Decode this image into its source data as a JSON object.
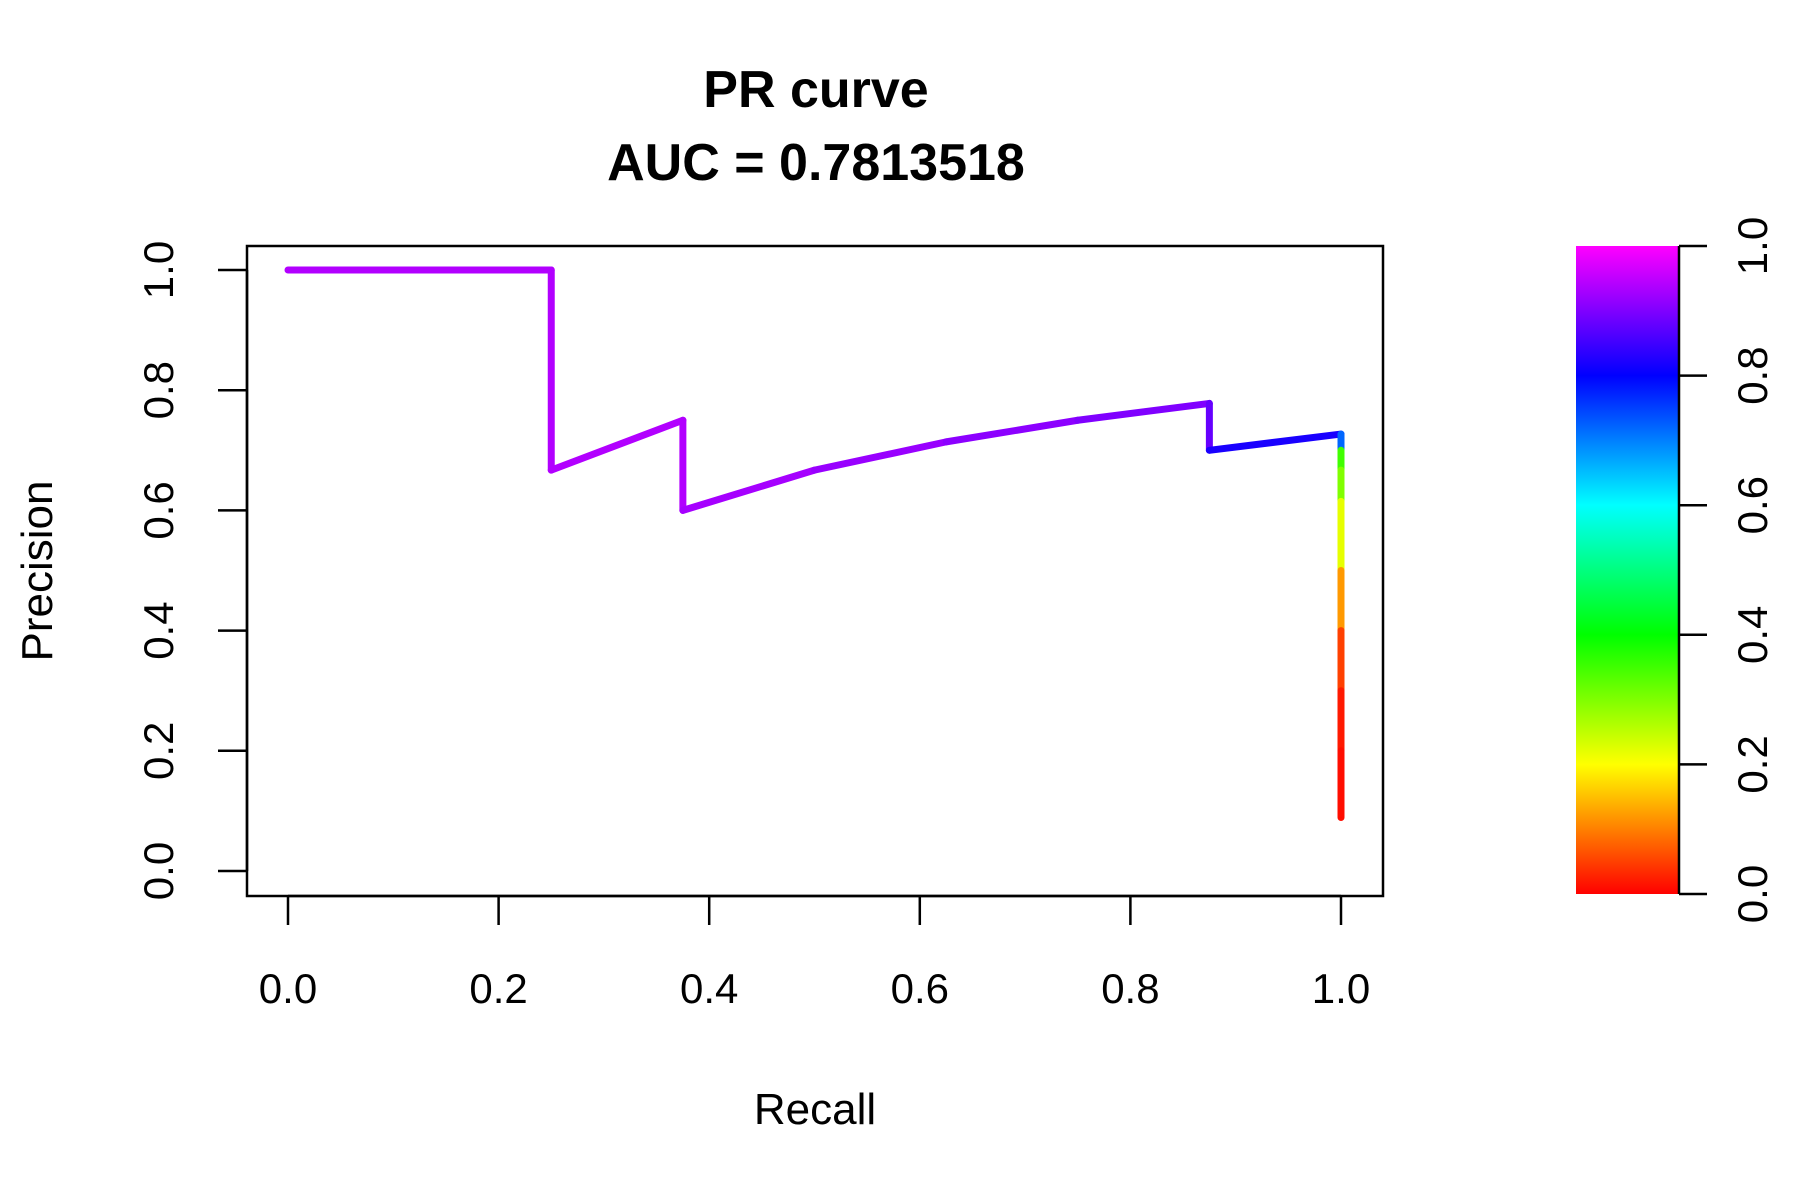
{
  "chart_data": {
    "type": "line",
    "title": "PR curve",
    "subtitle": "AUC = 0.7813518",
    "xlabel": "Recall",
    "ylabel": "Precision",
    "xlim": [
      0,
      1
    ],
    "ylim": [
      0,
      1
    ],
    "x_ticks": [
      "0.0",
      "0.2",
      "0.4",
      "0.6",
      "0.8",
      "1.0"
    ],
    "y_ticks": [
      "0.0",
      "0.2",
      "0.4",
      "0.6",
      "0.8",
      "1.0"
    ],
    "grid": false,
    "legend": "colorbar-right",
    "colorbar": {
      "range": [
        0,
        1
      ],
      "ticks": [
        "0.0",
        "0.2",
        "0.4",
        "0.6",
        "0.8",
        "1.0"
      ],
      "stops": [
        {
          "v": 0.0,
          "color": "#ff0000"
        },
        {
          "v": 0.2,
          "color": "#ffff00"
        },
        {
          "v": 0.4,
          "color": "#00ff00"
        },
        {
          "v": 0.6,
          "color": "#00ffff"
        },
        {
          "v": 0.8,
          "color": "#0000ff"
        },
        {
          "v": 1.0,
          "color": "#ff00ff"
        }
      ]
    },
    "points": [
      {
        "recall": 0.0,
        "precision": 1.0,
        "threshold": 0.94
      },
      {
        "recall": 0.125,
        "precision": 1.0,
        "threshold": 0.94
      },
      {
        "recall": 0.25,
        "precision": 1.0,
        "threshold": 0.94
      },
      {
        "recall": 0.25,
        "precision": 0.667,
        "threshold": 0.94
      },
      {
        "recall": 0.375,
        "precision": 0.75,
        "threshold": 0.94
      },
      {
        "recall": 0.375,
        "precision": 0.6,
        "threshold": 0.93
      },
      {
        "recall": 0.5,
        "precision": 0.667,
        "threshold": 0.92
      },
      {
        "recall": 0.625,
        "precision": 0.714,
        "threshold": 0.91
      },
      {
        "recall": 0.75,
        "precision": 0.75,
        "threshold": 0.9
      },
      {
        "recall": 0.875,
        "precision": 0.778,
        "threshold": 0.88
      },
      {
        "recall": 0.875,
        "precision": 0.7,
        "threshold": 0.82
      },
      {
        "recall": 1.0,
        "precision": 0.727,
        "threshold": 0.72
      },
      {
        "recall": 1.0,
        "precision": 0.7,
        "threshold": 0.35
      },
      {
        "recall": 1.0,
        "precision": 0.667,
        "threshold": 0.3
      },
      {
        "recall": 1.0,
        "precision": 0.615,
        "threshold": 0.22
      },
      {
        "recall": 1.0,
        "precision": 0.5,
        "threshold": 0.12
      },
      {
        "recall": 1.0,
        "precision": 0.4,
        "threshold": 0.05
      },
      {
        "recall": 1.0,
        "precision": 0.3,
        "threshold": 0.02
      },
      {
        "recall": 1.0,
        "precision": 0.2,
        "threshold": 0.01
      },
      {
        "recall": 1.0,
        "precision": 0.089,
        "threshold": 0.0
      }
    ]
  }
}
